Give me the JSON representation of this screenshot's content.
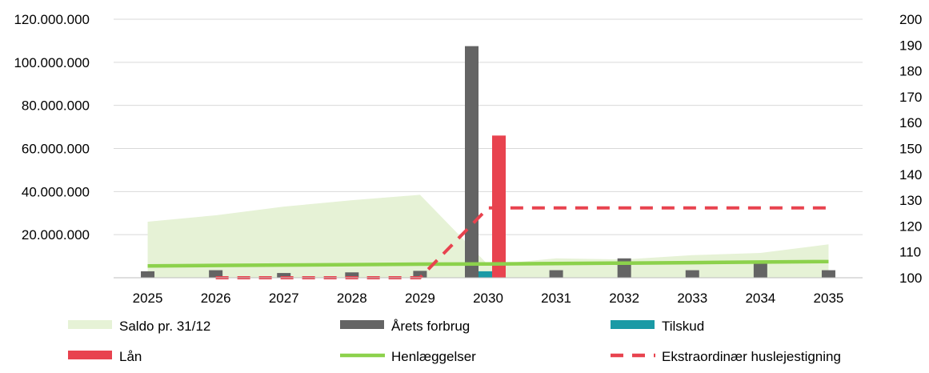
{
  "chart_data": {
    "type": "bar",
    "categories": [
      "2025",
      "2026",
      "2027",
      "2028",
      "2029",
      "2030",
      "2031",
      "2032",
      "2033",
      "2034",
      "2035"
    ],
    "y_left": {
      "min": 0,
      "max": 120000000,
      "ticks": [
        20000000,
        40000000,
        60000000,
        80000000,
        100000000,
        120000000
      ]
    },
    "y_right": {
      "min": 100,
      "max": 200,
      "ticks": [
        100,
        110,
        120,
        130,
        140,
        150,
        160,
        170,
        180,
        190,
        200
      ]
    },
    "tick_labels_left": [
      "20.000.000",
      "40.000.000",
      "60.000.000",
      "80.000.000",
      "100.000.000",
      "120.000.000"
    ],
    "tick_labels_right": [
      "100",
      "110",
      "120",
      "130",
      "140",
      "150",
      "160",
      "170",
      "180",
      "190",
      "200"
    ],
    "grid": true,
    "legend_position": "bottom",
    "series": [
      {
        "name": "Saldo pr. 31/12",
        "kind": "area",
        "axis": "left",
        "color": "#e6f2d6",
        "values": [
          26000000,
          29000000,
          33000000,
          36000000,
          38500000,
          6000000,
          9000000,
          8500000,
          10500000,
          11500000,
          15500000
        ]
      },
      {
        "name": "Årets forbrug",
        "kind": "bar",
        "axis": "left",
        "color": "#646464",
        "values": [
          3000000,
          3500000,
          2200000,
          2500000,
          3200000,
          107500000,
          3500000,
          9000000,
          3500000,
          7000000,
          3500000
        ]
      },
      {
        "name": "Tilskud",
        "kind": "bar",
        "axis": "left",
        "color": "#1a9aa5",
        "values": [
          0,
          0,
          0,
          0,
          0,
          3000000,
          0,
          0,
          0,
          0,
          0
        ]
      },
      {
        "name": "Lån",
        "kind": "bar",
        "axis": "left",
        "color": "#e8434f",
        "values": [
          0,
          0,
          0,
          0,
          0,
          66000000,
          0,
          0,
          0,
          0,
          0
        ]
      },
      {
        "name": "Henlæggelser",
        "kind": "line",
        "axis": "left",
        "color": "#8cd14c",
        "values": [
          5500000,
          5700000,
          5900000,
          6100000,
          6300000,
          6400000,
          6600000,
          6800000,
          7000000,
          7300000,
          7500000
        ]
      },
      {
        "name": "Ekstraordinær huslejestigning",
        "kind": "dashed-line",
        "axis": "right",
        "color": "#e8434f",
        "values": [
          null,
          100,
          100,
          100,
          100,
          127,
          127,
          127,
          127,
          127,
          127
        ]
      }
    ]
  }
}
